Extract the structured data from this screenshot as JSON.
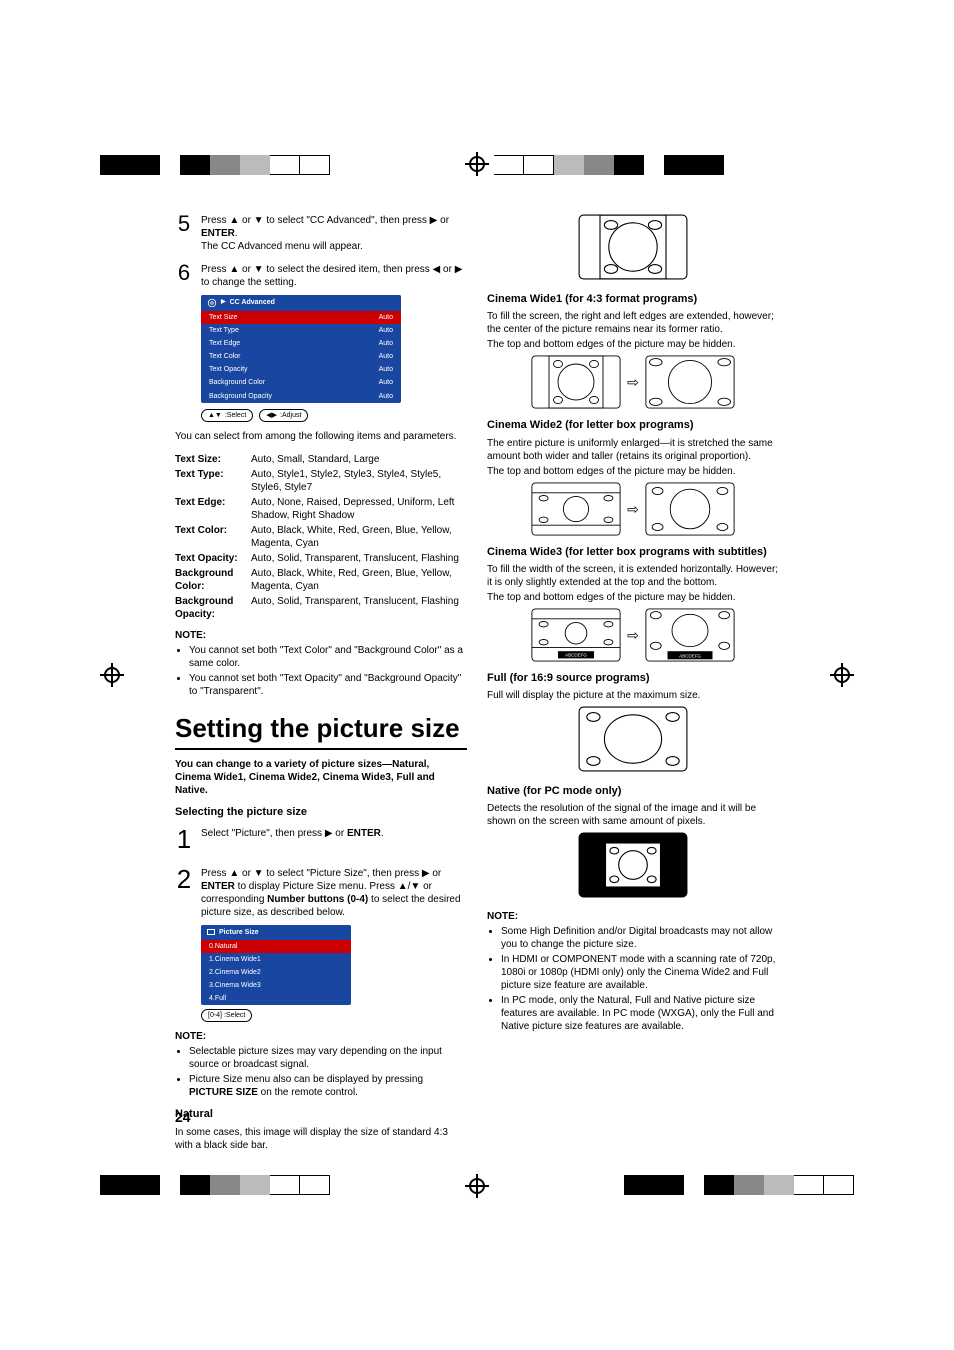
{
  "pageNumber": "24",
  "step5": {
    "num": "5",
    "line1_a": "Press ▲ or ▼ to select \"CC Advanced\", then press ▶ or ",
    "line1_b": "ENTER",
    "line1_c": ".",
    "line2": "The CC Advanced menu will appear."
  },
  "step6": {
    "num": "6",
    "line1": "Press ▲ or ▼ to select the desired item, then press ◀ or ▶ to change the setting."
  },
  "ccMenu": {
    "title": "CC Advanced",
    "rows": [
      {
        "label": "Text Size",
        "val": "Auto",
        "sel": true
      },
      {
        "label": "Text Type",
        "val": "Auto"
      },
      {
        "label": "Text Edge",
        "val": "Auto"
      },
      {
        "label": "Text Color",
        "val": "Auto"
      },
      {
        "label": "Text Opacity",
        "val": "Auto"
      },
      {
        "label": "Background Color",
        "val": "Auto"
      },
      {
        "label": "Background Opacity",
        "val": "Auto"
      }
    ],
    "hintSelect": ":Select",
    "hintAdjust": ":Adjust"
  },
  "paramsIntro": "You can select from among the following items and parameters.",
  "params": [
    {
      "label": "Text Size:",
      "val": "Auto, Small, Standard, Large"
    },
    {
      "label": "Text Type:",
      "val": "Auto, Style1, Style2, Style3, Style4, Style5, Style6, Style7"
    },
    {
      "label": "Text Edge:",
      "val": "Auto, None, Raised, Depressed, Uniform, Left Shadow, Right Shadow"
    },
    {
      "label": "Text Color:",
      "val": "Auto, Black, White, Red, Green, Blue, Yellow, Magenta, Cyan"
    },
    {
      "label": "Text Opacity:",
      "val": "Auto, Solid, Transparent, Translucent, Flashing"
    },
    {
      "label": "Background Color:",
      "val": "Auto, Black, White, Red, Green, Blue, Yellow, Magenta, Cyan"
    },
    {
      "label": "Background Opacity:",
      "val": "Auto, Solid, Transparent, Translucent, Flashing"
    }
  ],
  "note1Hdr": "NOTE:",
  "note1Items": [
    "You cannot set both \"Text Color\" and \"Background Color\" as a same color.",
    "You cannot set both \"Text Opacity\" and \"Background Opacity\" to \"Transparent\"."
  ],
  "h1": "Setting the picture size",
  "intro2": "You can change to a variety of picture sizes—Natural, Cinema Wide1, Cinema Wide2, Cinema Wide3, Full and Native.",
  "selHdr": "Selecting the picture size",
  "step1": {
    "num": "1",
    "a": "Select \"Picture\", then press ▶ or ",
    "b": "ENTER",
    "c": "."
  },
  "step2": {
    "num": "2",
    "a": "Press ▲ or ▼ to select \"Picture Size\", then press ▶ or ",
    "b": "ENTER",
    "c": " to display Picture Size menu. Press ▲/▼ or corresponding ",
    "d": "Number buttons (0-4)",
    "e": " to select the desired picture size, as described below."
  },
  "psMenu": {
    "title": "Picture Size",
    "rows": [
      {
        "label": "0.Natural",
        "sel": true
      },
      {
        "label": "1.Cinema Wide1"
      },
      {
        "label": "2.Cinema Wide2"
      },
      {
        "label": "3.Cinema Wide3"
      },
      {
        "label": "4.Full"
      }
    ],
    "hint": "[0-4] :Select"
  },
  "note2Hdr": "NOTE:",
  "note2Items": [
    "Selectable picture sizes may vary depending on the input source or broadcast signal.",
    {
      "a": "Picture Size menu also can be displayed by pressing ",
      "b": "PICTURE SIZE",
      "c": " on the remote control."
    }
  ],
  "naturalHdr": "Natural",
  "naturalTxt": "In some cases, this image will display the size of standard 4:3 with a black side bar.",
  "cw1Hdr": "Cinema Wide1 (for 4:3 format programs)",
  "cw1Txt": "To fill the screen, the right and left edges are extended, however; the center of the picture remains near its former ratio.",
  "cw1Txt2": "The top and bottom edges of the picture may be hidden.",
  "cw2Hdr": "Cinema Wide2 (for letter box programs)",
  "cw2Txt": "The entire picture is uniformly enlarged—it is stretched the same amount both wider and taller (retains its original proportion).",
  "cw2Txt2": "The top and bottom edges of the picture may be hidden.",
  "cw3Hdr": "Cinema Wide3 (for letter box programs with subtitles)",
  "cw3Txt": "To fill the width of the screen, it is extended horizontally. However; it is only slightly extended at the top and the bottom.",
  "cw3Txt2": "The top and bottom edges of the picture may be hidden.",
  "fullHdr": "Full (for 16:9 source programs)",
  "fullTxt": "Full will display the picture at the maximum size.",
  "nativeHdr": "Native (for PC mode only)",
  "nativeTxt": "Detects the resolution of the signal of the image and it will be shown on the screen with same amount of pixels.",
  "note3Hdr": "NOTE:",
  "note3Items": [
    "Some High Definition and/or Digital broadcasts may not allow you to change the picture size.",
    "In HDMI or COMPONENT mode with a scanning rate of 720p, 1080i or 1080p (HDMI only) only the Cinema Wide2 and Full picture size feature are available.",
    "In PC mode, only the Natural, Full and Native picture size features are available. In PC mode (WXGA), only the Full and Native picture size features are available."
  ],
  "subtitleLabel": "ABCDEFG"
}
